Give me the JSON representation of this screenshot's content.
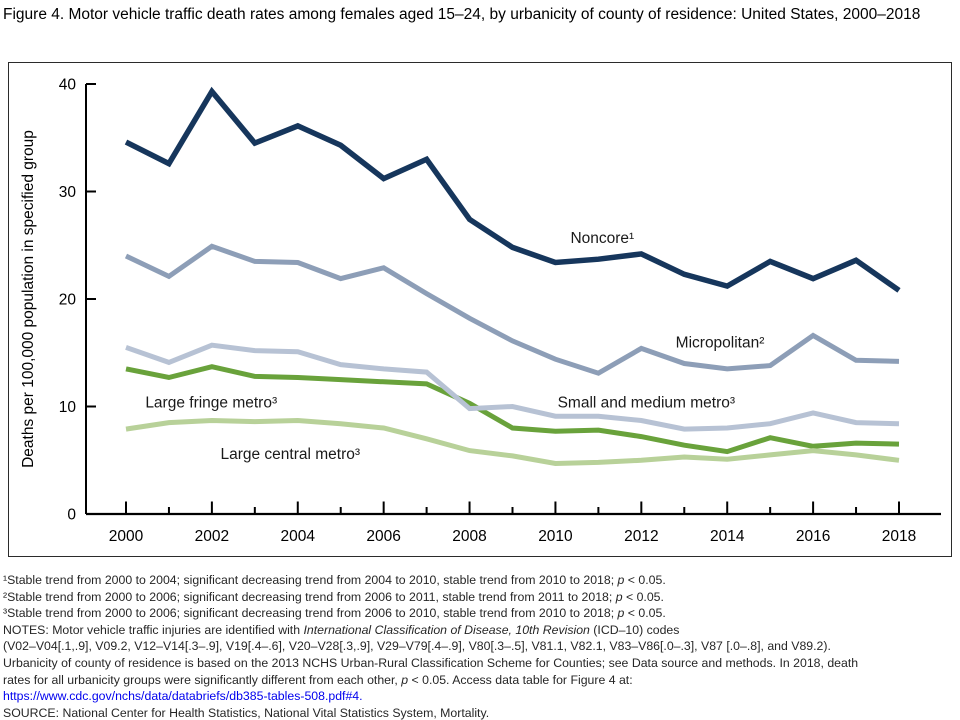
{
  "title": "Figure 4. Motor vehicle traffic death rates among females aged 15–24, by urbanicity of county of residence: United States, 2000–2018",
  "chart_data": {
    "type": "line",
    "title": "Figure 4. Motor vehicle traffic death rates among females aged 15–24, by urbanicity of county of residence: United States, 2000–2018",
    "xlabel": "",
    "ylabel": "Deaths per 100,000 population in specified group",
    "x": [
      2000,
      2001,
      2002,
      2003,
      2004,
      2005,
      2006,
      2007,
      2008,
      2009,
      2010,
      2011,
      2012,
      2013,
      2014,
      2015,
      2016,
      2017,
      2018
    ],
    "xtick_labeled": [
      2000,
      2002,
      2004,
      2006,
      2008,
      2010,
      2012,
      2014,
      2016,
      2018
    ],
    "ylim": [
      0,
      40
    ],
    "yticks": [
      0,
      10,
      20,
      30,
      40
    ],
    "grid": false,
    "legend_position": "inline-annotations",
    "series": [
      {
        "name": "Large fringe metro",
        "label": "Large fringe metro³",
        "color": "#69a23b",
        "stroke_width": 5,
        "values": [
          13.5,
          12.7,
          13.7,
          12.8,
          12.7,
          12.5,
          12.3,
          12.1,
          10.3,
          8.0,
          7.7,
          7.8,
          7.2,
          6.4,
          5.8,
          7.1,
          6.3,
          6.6,
          6.5
        ],
        "label_pos": {
          "x": 2000.45,
          "y": 9.9
        }
      },
      {
        "name": "Large central metro",
        "label": "Large central metro³",
        "color": "#b8d199",
        "stroke_width": 5,
        "values": [
          7.9,
          8.5,
          8.7,
          8.6,
          8.7,
          8.4,
          8.0,
          7.0,
          5.9,
          5.4,
          4.7,
          4.8,
          5.0,
          5.3,
          5.1,
          5.5,
          5.9,
          5.5,
          5.0
        ],
        "label_pos": {
          "x": 2002.2,
          "y": 5.1
        }
      },
      {
        "name": "Small and medium metro",
        "label": "Small and medium metro³",
        "color": "#b7c2d4",
        "stroke_width": 5,
        "values": [
          15.5,
          14.1,
          15.7,
          15.2,
          15.1,
          13.9,
          13.5,
          13.2,
          9.8,
          10.0,
          9.1,
          9.1,
          8.7,
          7.9,
          8.0,
          8.4,
          9.4,
          8.5,
          8.4
        ],
        "label_pos": {
          "x": 2010.05,
          "y": 9.9
        }
      },
      {
        "name": "Micropolitan",
        "label": "Micropolitan²",
        "color": "#8d9eb7",
        "stroke_width": 5,
        "values": [
          24.0,
          22.1,
          24.9,
          23.5,
          23.4,
          21.9,
          22.9,
          20.5,
          18.2,
          16.1,
          14.4,
          13.1,
          15.4,
          14.0,
          13.5,
          13.8,
          16.6,
          14.3,
          14.2
        ],
        "label_pos": {
          "x": 2012.8,
          "y": 15.5
        }
      },
      {
        "name": "Noncore",
        "label": "Noncore¹",
        "color": "#16365c",
        "stroke_width": 5.5,
        "values": [
          34.6,
          32.6,
          39.3,
          34.5,
          36.1,
          34.3,
          31.2,
          33.0,
          27.4,
          24.8,
          23.4,
          23.7,
          24.2,
          22.3,
          21.2,
          23.5,
          21.9,
          23.6,
          20.8
        ],
        "label_pos": {
          "x": 2010.35,
          "y": 25.2
        }
      }
    ]
  },
  "footnotes": {
    "lines": [
      [
        {
          "t": "¹Stable trend from 2000 to 2004; significant decreasing trend from 2004 to 2010, stable trend from 2010 to 2018; "
        },
        {
          "t": "p",
          "i": true
        },
        {
          "t": " < 0.05."
        }
      ],
      [
        {
          "t": "²Stable trend from 2000 to 2006; significant decreasing trend from 2006 to 2011, stable trend from 2011 to 2018; "
        },
        {
          "t": "p",
          "i": true
        },
        {
          "t": " < 0.05."
        }
      ],
      [
        {
          "t": "³Stable trend from 2000 to 2006; significant decreasing trend from 2006 to 2010, stable trend from 2010 to 2018; "
        },
        {
          "t": "p",
          "i": true
        },
        {
          "t": " < 0.05."
        }
      ],
      [
        {
          "t": "NOTES: Motor vehicle traffic injuries are identified with "
        },
        {
          "t": "International Classification of Disease, 10th Revision",
          "i": true
        },
        {
          "t": " (ICD–10) codes"
        }
      ],
      [
        {
          "t": "(V02–V04[.1,.9], V09.2, V12–V14[.3–.9], V19[.4–.6], V20–V28[.3,.9], V29–V79[.4–.9], V80[.3–.5], V81.1, V82.1, V83–V86[.0–.3], V87 [.0–.8], and V89.2)."
        }
      ],
      [
        {
          "t": "Urbanicity of county of residence is based on the 2013 NCHS Urban-Rural Classification Scheme for Counties; see Data source and methods. In 2018, death"
        }
      ],
      [
        {
          "t": "rates for all urbanicity groups were significantly different from each other, "
        },
        {
          "t": "p",
          "i": true
        },
        {
          "t": " < 0.05. Access data table for Figure 4 at:"
        }
      ],
      [
        {
          "t": "https://www.cdc.gov/nchs/data/databriefs/db385-tables-508.pdf#4.",
          "link": true
        }
      ],
      [
        {
          "t": "SOURCE: National Center for Health Statistics, National Vital Statistics System, Mortality."
        }
      ]
    ]
  },
  "colors": {
    "text": "#000000",
    "footnote_text": "#262626",
    "link": "#0000ee",
    "axis": "#000000"
  }
}
